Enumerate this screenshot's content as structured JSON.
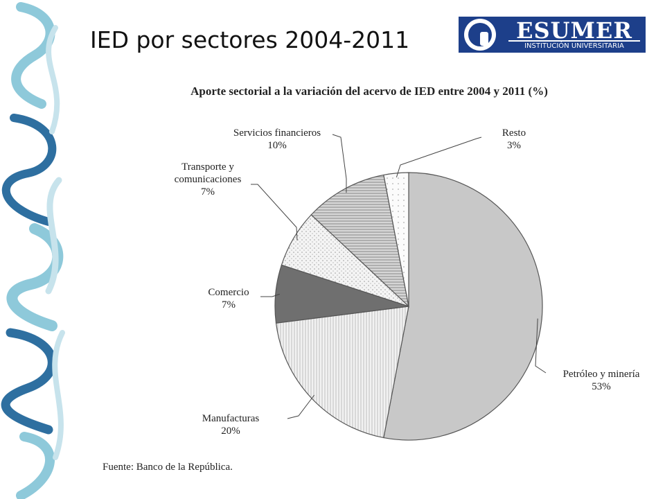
{
  "slide": {
    "title": "IED por sectores 2004-2011",
    "source": "Fuente: Banco de la República."
  },
  "logo": {
    "name": "ESUMER",
    "subtitle": "INSTITUCIÓN UNIVERSITARIA",
    "color": "#1d3f8a"
  },
  "decoration": {
    "icon": "calligraphy-watermark",
    "colors": [
      "#8ec9da",
      "#2e6fa0"
    ]
  },
  "chart_data": {
    "type": "pie",
    "title": "Aporte sectorial a la variación del acervo de IED entre 2004 y 2011 (%)",
    "unit": "%",
    "slices": [
      {
        "name": "Petróleo y minería",
        "value": 53,
        "label": "53%",
        "fill": "#c8c8c8",
        "pattern": "solid"
      },
      {
        "name": "Manufacturas",
        "value": 20,
        "label": "20%",
        "fill": "#eeeeee",
        "pattern": "vertical-lines"
      },
      {
        "name": "Comercio",
        "value": 7,
        "label": "7%",
        "fill": "#6f6f6f",
        "pattern": "solid"
      },
      {
        "name": "Transporte y comunicaciones",
        "value": 7,
        "label": "7%",
        "fill": "#f0f0f0",
        "pattern": "dots"
      },
      {
        "name": "Servicios financieros",
        "value": 10,
        "label": "10%",
        "fill": "#bdbdbd",
        "pattern": "horizontal-lines"
      },
      {
        "name": "Resto",
        "value": 3,
        "label": "3%",
        "fill": "#fafafa",
        "pattern": "sparse-dots"
      }
    ]
  }
}
